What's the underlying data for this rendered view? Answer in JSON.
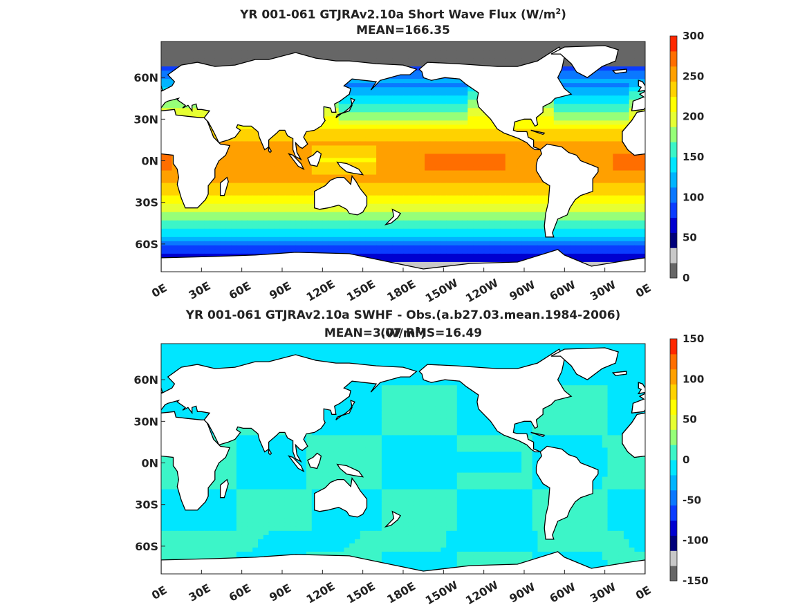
{
  "chart_data": [
    {
      "type": "heatmap",
      "title_line1": "YR 001-061 GTJRAv2.10a  Short Wave Flux (W/m",
      "title_sup": "2",
      "title_close": ")",
      "subtitle": "MEAN=166.35",
      "x_ticks": [
        "0E",
        "30E",
        "60E",
        "90E",
        "120E",
        "150E",
        "180E",
        "150W",
        "120W",
        "90W",
        "60W",
        "30W",
        "0E"
      ],
      "y_ticks": [
        "60N",
        "30N",
        "0N",
        "30S",
        "60S"
      ],
      "y_tick_values": [
        60,
        30,
        0,
        -30,
        -60
      ],
      "xlim": [
        0,
        360
      ],
      "ylim": [
        -80,
        86
      ],
      "colorbar": {
        "min": 0,
        "max": 300,
        "ticks": [
          "300",
          "250",
          "200",
          "150",
          "100",
          "50",
          "0"
        ],
        "tick_values": [
          300,
          250,
          200,
          150,
          100,
          50,
          0
        ],
        "colors": [
          "#666666",
          "#c8c8c8",
          "#00007a",
          "#0000d0",
          "#0a3cff",
          "#0a78ff",
          "#00b4ff",
          "#00e6ff",
          "#3cf5c8",
          "#96ff78",
          "#e6ff32",
          "#ffff00",
          "#ffd200",
          "#ffa000",
          "#ff6e00",
          "#ff2800"
        ]
      },
      "mean": 166.35
    },
    {
      "type": "heatmap",
      "title_line1": "YR 001-061 GTJRAv2.10a SWHF - Obs.(a.b27.03.mean.1984-2006) (W/m",
      "title_sup": "2",
      "title_close": ")",
      "subtitle": "MEAN=3.07 RMS=16.49",
      "x_ticks": [
        "0E",
        "30E",
        "60E",
        "90E",
        "120E",
        "150E",
        "180E",
        "150W",
        "120W",
        "90W",
        "60W",
        "30W",
        "0E"
      ],
      "y_ticks": [
        "60N",
        "30N",
        "0N",
        "30S",
        "60S"
      ],
      "y_tick_values": [
        60,
        30,
        0,
        -30,
        -60
      ],
      "xlim": [
        0,
        360
      ],
      "ylim": [
        -80,
        86
      ],
      "colorbar": {
        "min": -150,
        "max": 150,
        "ticks": [
          "150",
          "100",
          "50",
          "0",
          "-50",
          "-100",
          "-150"
        ],
        "tick_values": [
          150,
          100,
          50,
          0,
          -50,
          -100,
          -150
        ],
        "colors": [
          "#666666",
          "#c8c8c8",
          "#00007a",
          "#0000d0",
          "#0a3cff",
          "#0a78ff",
          "#00b4ff",
          "#00e6ff",
          "#3cf5c8",
          "#96ff78",
          "#e6ff32",
          "#ffff00",
          "#ffd200",
          "#ffa000",
          "#ff6e00",
          "#ff2800"
        ]
      },
      "mean": 3.07,
      "rms": 16.49
    }
  ]
}
